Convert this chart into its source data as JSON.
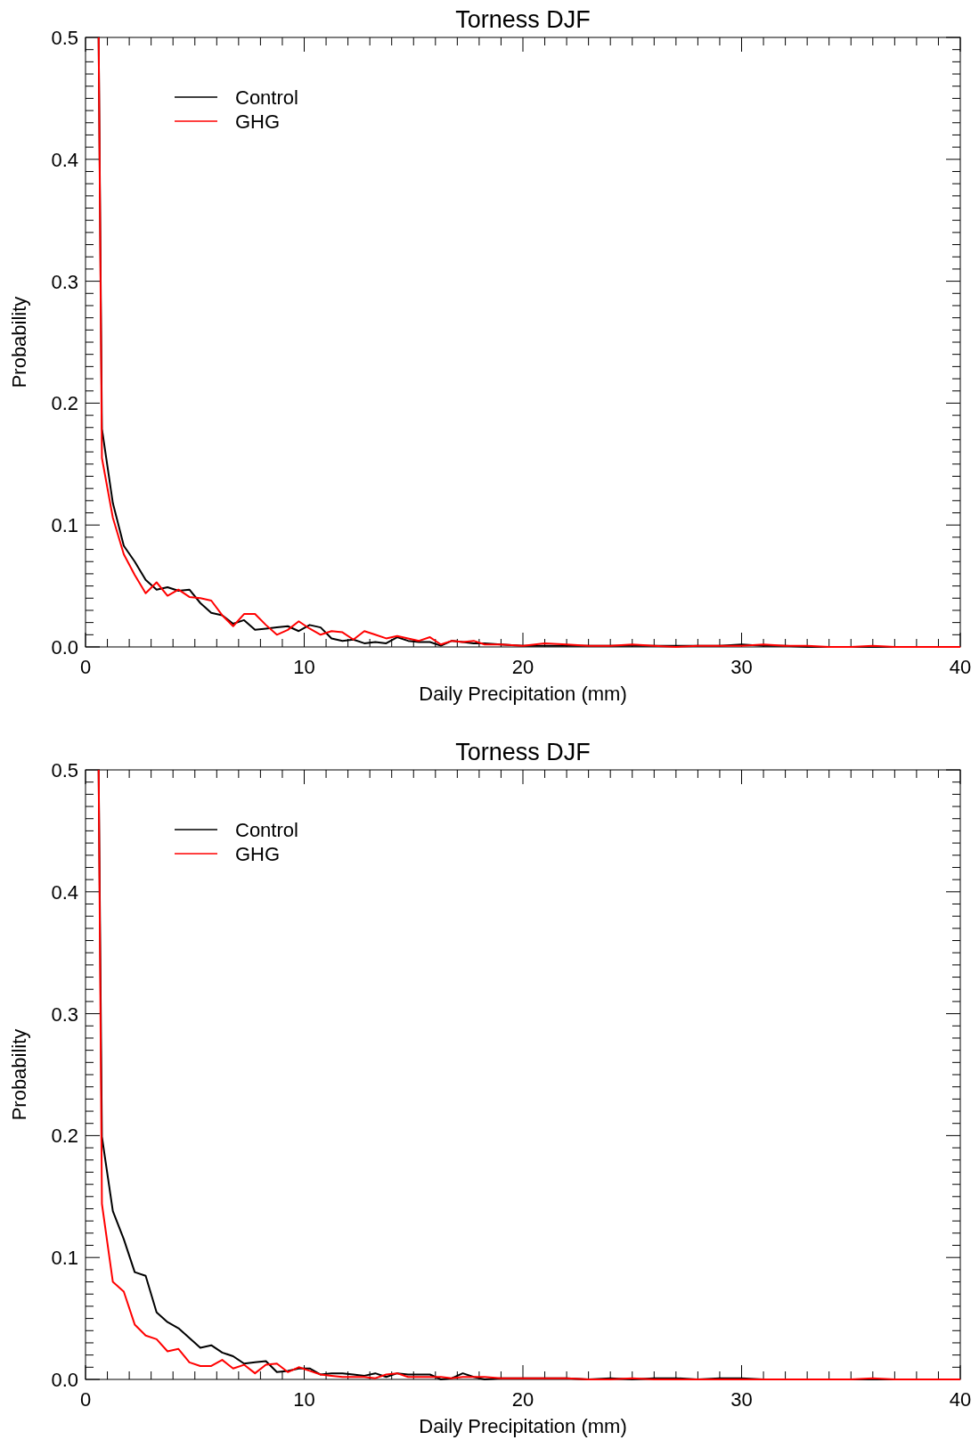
{
  "chart_data": [
    {
      "type": "line",
      "title": "Torness DJF",
      "xlabel": "Daily Precipitation (mm)",
      "ylabel": "Probability",
      "legend": "top left",
      "xlim": [
        0,
        40
      ],
      "ylim": [
        0,
        0.5
      ],
      "xticks": [
        0,
        {
          "value": 1,
          "label": null
        },
        {
          "value": 2,
          "label": null
        },
        {
          "value": 3,
          "label": null
        },
        {
          "value": 4,
          "label": null
        },
        {
          "value": 5,
          "label": null
        },
        {
          "value": 6,
          "label": null
        },
        {
          "value": 7,
          "label": null
        },
        {
          "value": 8,
          "label": null
        },
        {
          "value": 9,
          "label": null
        },
        10,
        {
          "value": 11,
          "label": null
        },
        {
          "value": 12,
          "label": null
        },
        {
          "value": 13,
          "label": null
        },
        {
          "value": 14,
          "label": null
        },
        {
          "value": 15,
          "label": null
        },
        {
          "value": 16,
          "label": null
        },
        {
          "value": 17,
          "label": null
        },
        {
          "value": 18,
          "label": null
        },
        {
          "value": 19,
          "label": null
        },
        20,
        {
          "value": 21,
          "label": null
        },
        {
          "value": 22,
          "label": null
        },
        {
          "value": 23,
          "label": null
        },
        {
          "value": 24,
          "label": null
        },
        {
          "value": 25,
          "label": null
        },
        {
          "value": 26,
          "label": null
        },
        {
          "value": 27,
          "label": null
        },
        {
          "value": 28,
          "label": null
        },
        {
          "value": 29,
          "label": null
        },
        30,
        {
          "value": 31,
          "label": null
        },
        {
          "value": 32,
          "label": null
        },
        {
          "value": 33,
          "label": null
        },
        {
          "value": 34,
          "label": null
        },
        {
          "value": 35,
          "label": null
        },
        {
          "value": 36,
          "label": null
        },
        {
          "value": 37,
          "label": null
        },
        {
          "value": 38,
          "label": null
        },
        {
          "value": 39,
          "label": null
        },
        40
      ],
      "yticks": [
        {
          "value": 0,
          "label": "0.0"
        },
        {
          "value": 0.01,
          "label": null
        },
        {
          "value": 0.02,
          "label": null
        },
        {
          "value": 0.03,
          "label": null
        },
        {
          "value": 0.04,
          "label": null
        },
        {
          "value": 0.05,
          "label": null
        },
        {
          "value": 0.06,
          "label": null
        },
        {
          "value": 0.07,
          "label": null
        },
        {
          "value": 0.08,
          "label": null
        },
        {
          "value": 0.09,
          "label": null
        },
        0.1,
        {
          "value": 0.11,
          "label": null
        },
        {
          "value": 0.12,
          "label": null
        },
        {
          "value": 0.13,
          "label": null
        },
        {
          "value": 0.14,
          "label": null
        },
        {
          "value": 0.15,
          "label": null
        },
        {
          "value": 0.16,
          "label": null
        },
        {
          "value": 0.17,
          "label": null
        },
        {
          "value": 0.18,
          "label": null
        },
        {
          "value": 0.19,
          "label": null
        },
        0.2,
        {
          "value": 0.21,
          "label": null
        },
        {
          "value": 0.22,
          "label": null
        },
        {
          "value": 0.23,
          "label": null
        },
        {
          "value": 0.24,
          "label": null
        },
        {
          "value": 0.25,
          "label": null
        },
        {
          "value": 0.26,
          "label": null
        },
        {
          "value": 0.27,
          "label": null
        },
        {
          "value": 0.28,
          "label": null
        },
        {
          "value": 0.29,
          "label": null
        },
        0.3,
        {
          "value": 0.31,
          "label": null
        },
        {
          "value": 0.32,
          "label": null
        },
        {
          "value": 0.33,
          "label": null
        },
        {
          "value": 0.34,
          "label": null
        },
        {
          "value": 0.35,
          "label": null
        },
        {
          "value": 0.36,
          "label": null
        },
        {
          "value": 0.37,
          "label": null
        },
        {
          "value": 0.38,
          "label": null
        },
        {
          "value": 0.39,
          "label": null
        },
        0.4,
        {
          "value": 0.41,
          "label": null
        },
        {
          "value": 0.42,
          "label": null
        },
        {
          "value": 0.43,
          "label": null
        },
        {
          "value": 0.44,
          "label": null
        },
        {
          "value": 0.45,
          "label": null
        },
        {
          "value": 0.46,
          "label": null
        },
        {
          "value": 0.47,
          "label": null
        },
        {
          "value": 0.48,
          "label": null
        },
        {
          "value": 0.49,
          "label": null
        },
        0.5
      ],
      "x": [
        0.6,
        0.75,
        1.25,
        1.75,
        2.25,
        2.75,
        3.25,
        3.75,
        4.25,
        4.75,
        5.25,
        5.75,
        6.25,
        6.75,
        7.25,
        7.75,
        8.25,
        8.75,
        9.25,
        9.75,
        10.25,
        10.75,
        11.25,
        11.75,
        12.25,
        12.75,
        13.25,
        13.75,
        14.25,
        14.75,
        15.25,
        15.75,
        16.25,
        16.75,
        17.25,
        17.75,
        18.25,
        19,
        20,
        21,
        22,
        23,
        24,
        25,
        26,
        27,
        28,
        29,
        30,
        31,
        32,
        33,
        34,
        35,
        36,
        37,
        38,
        39,
        40
      ],
      "series": [
        {
          "name": "Control",
          "color": "#000000",
          "values": [
            0.5,
            0.179,
            0.118,
            0.083,
            0.07,
            0.055,
            0.047,
            0.049,
            0.046,
            0.047,
            0.036,
            0.028,
            0.026,
            0.019,
            0.022,
            0.014,
            0.015,
            0.016,
            0.017,
            0.013,
            0.018,
            0.016,
            0.007,
            0.005,
            0.006,
            0.003,
            0.004,
            0.003,
            0.008,
            0.005,
            0.004,
            0.004,
            0.001,
            0.005,
            0.004,
            0.003,
            0.003,
            0.002,
            0.001,
            0.001,
            0.001,
            0.001,
            0.001,
            0.001,
            0.001,
            0.001,
            0.001,
            0.001,
            0.002,
            0.001,
            0.001,
            0,
            0,
            0,
            0,
            0,
            0,
            0,
            0
          ]
        },
        {
          "name": "GHG",
          "color": "#ff0000",
          "values": [
            0.5,
            0.155,
            0.106,
            0.076,
            0.059,
            0.044,
            0.053,
            0.042,
            0.047,
            0.041,
            0.04,
            0.038,
            0.026,
            0.017,
            0.027,
            0.027,
            0.018,
            0.01,
            0.014,
            0.021,
            0.015,
            0.01,
            0.013,
            0.012,
            0.006,
            0.013,
            0.01,
            0.007,
            0.009,
            0.007,
            0.005,
            0.008,
            0.002,
            0.005,
            0.004,
            0.005,
            0.002,
            0.002,
            0.001,
            0.003,
            0.002,
            0.001,
            0.001,
            0.002,
            0.001,
            0,
            0.001,
            0.001,
            0.001,
            0.002,
            0.001,
            0.001,
            0,
            0,
            0.001,
            0,
            0,
            0,
            0
          ]
        }
      ]
    },
    {
      "type": "line",
      "title": "Torness DJF",
      "xlabel": "Daily Precipitation (mm)",
      "ylabel": "Probability",
      "legend": "top left",
      "xlim": [
        0,
        40
      ],
      "ylim": [
        0,
        0.5
      ],
      "xticks": [
        0,
        {
          "value": 1,
          "label": null
        },
        {
          "value": 2,
          "label": null
        },
        {
          "value": 3,
          "label": null
        },
        {
          "value": 4,
          "label": null
        },
        {
          "value": 5,
          "label": null
        },
        {
          "value": 6,
          "label": null
        },
        {
          "value": 7,
          "label": null
        },
        {
          "value": 8,
          "label": null
        },
        {
          "value": 9,
          "label": null
        },
        10,
        {
          "value": 11,
          "label": null
        },
        {
          "value": 12,
          "label": null
        },
        {
          "value": 13,
          "label": null
        },
        {
          "value": 14,
          "label": null
        },
        {
          "value": 15,
          "label": null
        },
        {
          "value": 16,
          "label": null
        },
        {
          "value": 17,
          "label": null
        },
        {
          "value": 18,
          "label": null
        },
        {
          "value": 19,
          "label": null
        },
        20,
        {
          "value": 21,
          "label": null
        },
        {
          "value": 22,
          "label": null
        },
        {
          "value": 23,
          "label": null
        },
        {
          "value": 24,
          "label": null
        },
        {
          "value": 25,
          "label": null
        },
        {
          "value": 26,
          "label": null
        },
        {
          "value": 27,
          "label": null
        },
        {
          "value": 28,
          "label": null
        },
        {
          "value": 29,
          "label": null
        },
        30,
        {
          "value": 31,
          "label": null
        },
        {
          "value": 32,
          "label": null
        },
        {
          "value": 33,
          "label": null
        },
        {
          "value": 34,
          "label": null
        },
        {
          "value": 35,
          "label": null
        },
        {
          "value": 36,
          "label": null
        },
        {
          "value": 37,
          "label": null
        },
        {
          "value": 38,
          "label": null
        },
        {
          "value": 39,
          "label": null
        },
        40
      ],
      "yticks": [
        {
          "value": 0,
          "label": "0.0"
        },
        {
          "value": 0.01,
          "label": null
        },
        {
          "value": 0.02,
          "label": null
        },
        {
          "value": 0.03,
          "label": null
        },
        {
          "value": 0.04,
          "label": null
        },
        {
          "value": 0.05,
          "label": null
        },
        {
          "value": 0.06,
          "label": null
        },
        {
          "value": 0.07,
          "label": null
        },
        {
          "value": 0.08,
          "label": null
        },
        {
          "value": 0.09,
          "label": null
        },
        0.1,
        {
          "value": 0.11,
          "label": null
        },
        {
          "value": 0.12,
          "label": null
        },
        {
          "value": 0.13,
          "label": null
        },
        {
          "value": 0.14,
          "label": null
        },
        {
          "value": 0.15,
          "label": null
        },
        {
          "value": 0.16,
          "label": null
        },
        {
          "value": 0.17,
          "label": null
        },
        {
          "value": 0.18,
          "label": null
        },
        {
          "value": 0.19,
          "label": null
        },
        0.2,
        {
          "value": 0.21,
          "label": null
        },
        {
          "value": 0.22,
          "label": null
        },
        {
          "value": 0.23,
          "label": null
        },
        {
          "value": 0.24,
          "label": null
        },
        {
          "value": 0.25,
          "label": null
        },
        {
          "value": 0.26,
          "label": null
        },
        {
          "value": 0.27,
          "label": null
        },
        {
          "value": 0.28,
          "label": null
        },
        {
          "value": 0.29,
          "label": null
        },
        0.3,
        {
          "value": 0.31,
          "label": null
        },
        {
          "value": 0.32,
          "label": null
        },
        {
          "value": 0.33,
          "label": null
        },
        {
          "value": 0.34,
          "label": null
        },
        {
          "value": 0.35,
          "label": null
        },
        {
          "value": 0.36,
          "label": null
        },
        {
          "value": 0.37,
          "label": null
        },
        {
          "value": 0.38,
          "label": null
        },
        {
          "value": 0.39,
          "label": null
        },
        0.4,
        {
          "value": 0.41,
          "label": null
        },
        {
          "value": 0.42,
          "label": null
        },
        {
          "value": 0.43,
          "label": null
        },
        {
          "value": 0.44,
          "label": null
        },
        {
          "value": 0.45,
          "label": null
        },
        {
          "value": 0.46,
          "label": null
        },
        {
          "value": 0.47,
          "label": null
        },
        {
          "value": 0.48,
          "label": null
        },
        {
          "value": 0.49,
          "label": null
        },
        0.5
      ],
      "x": [
        0.6,
        0.75,
        1.25,
        1.75,
        2.25,
        2.75,
        3.25,
        3.75,
        4.25,
        4.75,
        5.25,
        5.75,
        6.25,
        6.75,
        7.25,
        7.75,
        8.25,
        8.75,
        9.25,
        9.75,
        10.25,
        10.75,
        11.25,
        11.75,
        12.25,
        12.75,
        13.25,
        13.75,
        14.25,
        14.75,
        15.25,
        15.75,
        16.25,
        16.75,
        17.25,
        17.75,
        18.25,
        19,
        20,
        21,
        22,
        23,
        24,
        25,
        26,
        27,
        28,
        29,
        30,
        31,
        32,
        33,
        34,
        35,
        36,
        37,
        38,
        39,
        40
      ],
      "series": [
        {
          "name": "Control",
          "color": "#000000",
          "values": [
            0.5,
            0.199,
            0.138,
            0.115,
            0.088,
            0.085,
            0.055,
            0.047,
            0.042,
            0.034,
            0.026,
            0.028,
            0.022,
            0.019,
            0.013,
            0.014,
            0.015,
            0.006,
            0.007,
            0.009,
            0.009,
            0.004,
            0.005,
            0.005,
            0.004,
            0.003,
            0.005,
            0.002,
            0.005,
            0.004,
            0.004,
            0.004,
            0,
            0.001,
            0.005,
            0.002,
            0,
            0.001,
            0.001,
            0.001,
            0.001,
            0,
            0.001,
            0,
            0.001,
            0.001,
            0,
            0.001,
            0.001,
            0,
            0,
            0,
            0,
            0,
            0,
            0,
            0,
            0,
            0
          ]
        },
        {
          "name": "GHG",
          "color": "#ff0000",
          "values": [
            0.5,
            0.144,
            0.08,
            0.072,
            0.045,
            0.036,
            0.033,
            0.023,
            0.025,
            0.014,
            0.011,
            0.011,
            0.016,
            0.009,
            0.012,
            0.005,
            0.012,
            0.013,
            0.006,
            0.01,
            0.007,
            0.004,
            0.003,
            0.002,
            0.002,
            0.002,
            0.001,
            0.004,
            0.005,
            0.002,
            0.002,
            0.002,
            0.002,
            0.001,
            0.002,
            0.002,
            0.002,
            0.001,
            0.001,
            0.001,
            0.001,
            0,
            0,
            0.001,
            0,
            0,
            0,
            0,
            0,
            0,
            0,
            0,
            0,
            0,
            0.001,
            0,
            0,
            0,
            0
          ]
        }
      ]
    }
  ]
}
